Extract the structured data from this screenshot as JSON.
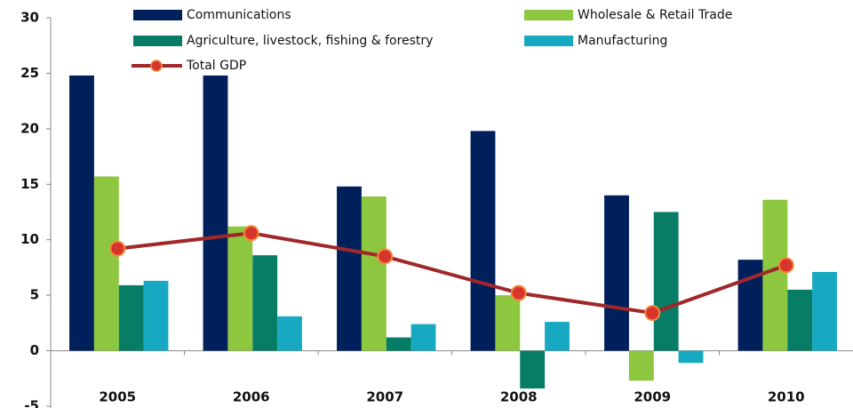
{
  "chart_data": {
    "type": "bar",
    "categories": [
      "2005",
      "2006",
      "2007",
      "2008",
      "2009",
      "2010"
    ],
    "series": [
      {
        "name": "Communications",
        "color": "#00205b",
        "values": [
          24.8,
          24.8,
          14.8,
          19.8,
          14.0,
          8.2
        ]
      },
      {
        "name": "Wholesale & Retail Trade",
        "color": "#8dc63f",
        "values": [
          15.7,
          11.2,
          13.9,
          5.0,
          -2.7,
          13.6
        ]
      },
      {
        "name": "Agriculture, livestock, fishing & forestry",
        "color": "#077d66",
        "values": [
          5.9,
          8.6,
          1.2,
          -3.4,
          12.5,
          5.5
        ]
      },
      {
        "name": "Manufacturing",
        "color": "#17a9c1",
        "values": [
          6.3,
          3.1,
          2.4,
          2.6,
          -1.1,
          7.1
        ]
      },
      {
        "name": "Total GDP",
        "type": "line",
        "color": "#a0282a",
        "marker_color": "#d9342b",
        "values": [
          9.2,
          10.6,
          8.5,
          5.2,
          3.4,
          7.7
        ]
      }
    ],
    "ylim": [
      -5,
      30
    ],
    "yticks": [
      -5,
      0,
      5,
      10,
      15,
      20,
      25,
      30
    ],
    "grid": false
  }
}
